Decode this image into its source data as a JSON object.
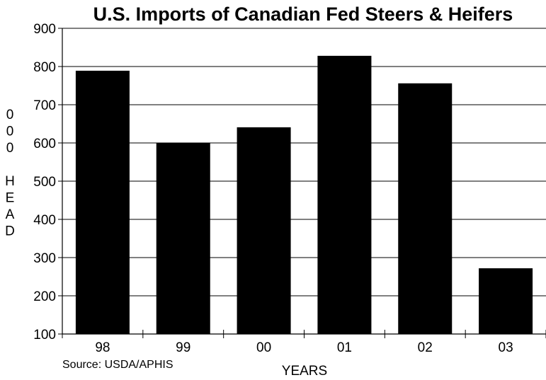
{
  "chart_data": {
    "type": "bar",
    "title": "U.S. Imports of Canadian Fed Steers & Heifers",
    "xlabel": "YEARS",
    "ylabel": "000 HEAD",
    "ylabel_lines": [
      "0",
      "0",
      "0",
      "",
      "H",
      "E",
      "A",
      "D"
    ],
    "categories": [
      "98",
      "99",
      "00",
      "01",
      "02",
      "03"
    ],
    "values": [
      789,
      600,
      641,
      828,
      756,
      272
    ],
    "ylim": [
      100,
      900
    ],
    "yticks": [
      100,
      200,
      300,
      400,
      500,
      600,
      700,
      800,
      900
    ],
    "grid": true,
    "bar_color": "#000000",
    "source": "Source: USDA/APHIS"
  }
}
